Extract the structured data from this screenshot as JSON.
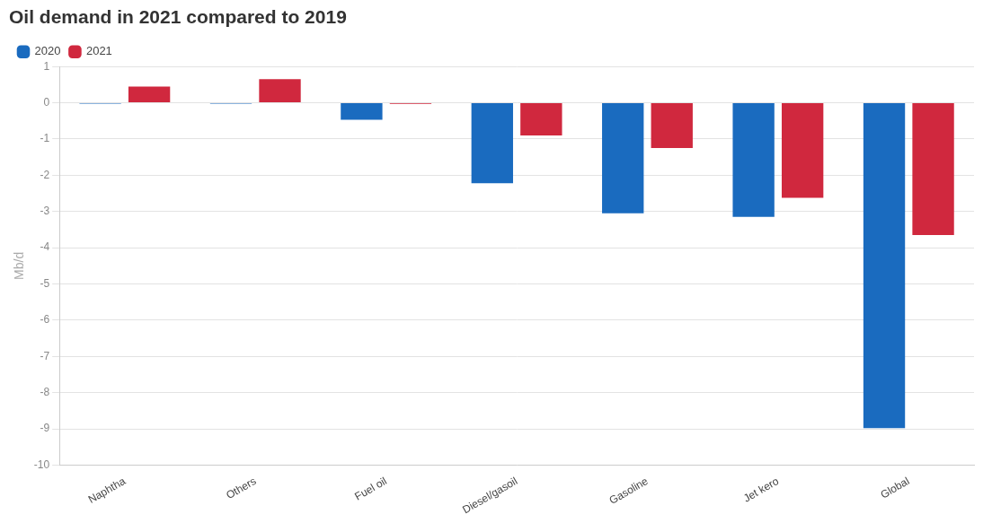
{
  "chart_data": {
    "type": "bar",
    "title": "Oil demand in 2021 compared to 2019",
    "y_label": "Mb/d",
    "categories": [
      "Naphtha",
      "Others",
      "Fuel oil",
      "Diesel/gasoil",
      "Gasoline",
      "Jet kero",
      "Global"
    ],
    "series": [
      {
        "name": "2020",
        "color": "#1a6bbf",
        "values": [
          -0.02,
          -0.02,
          -0.47,
          -2.22,
          -3.05,
          -3.15,
          -8.98
        ]
      },
      {
        "name": "2021",
        "color": "#d0283e",
        "values": [
          0.45,
          0.65,
          -0.03,
          -0.9,
          -1.25,
          -2.62,
          -3.65
        ]
      }
    ],
    "ylim": [
      -10,
      1
    ],
    "yticks": [
      -10,
      -9,
      -8,
      -7,
      -6,
      -5,
      -4,
      -3,
      -2,
      -1,
      0,
      1
    ],
    "grid": true,
    "legend": "top-left"
  }
}
